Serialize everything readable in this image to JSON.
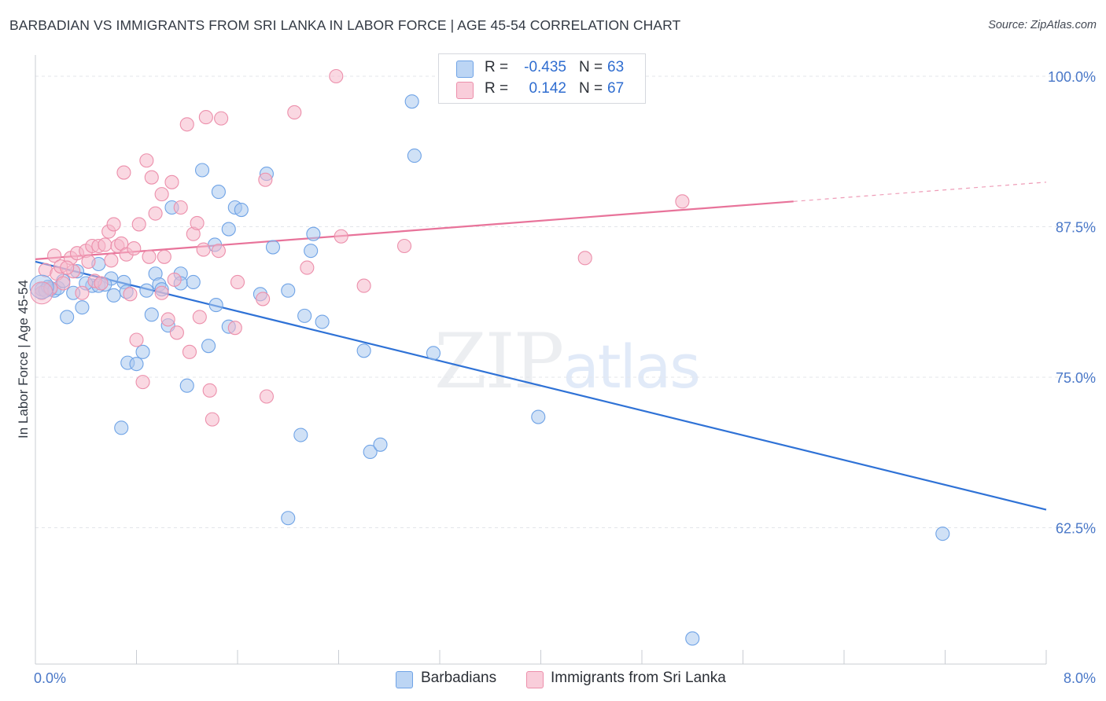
{
  "title": "BARBADIAN VS IMMIGRANTS FROM SRI LANKA IN LABOR FORCE | AGE 45-54 CORRELATION CHART",
  "source": "Source: ZipAtlas.com",
  "watermark": {
    "zip": "ZIP",
    "atlas": "atlas"
  },
  "legend": {
    "rows": [
      {
        "r_label": "R =",
        "r_value": "-0.435",
        "n_label": "N =",
        "n_value": "63",
        "color": "#a9c8ef"
      },
      {
        "r_label": "R =",
        "r_value": "0.142",
        "n_label": "N =",
        "n_value": "67",
        "color": "#f5b8cb"
      }
    ]
  },
  "bottom_legend": [
    {
      "label": "Barbadians",
      "color": "#a9c8ef"
    },
    {
      "label": "Immigrants from Sri Lanka",
      "color": "#f5b8cb"
    }
  ],
  "chart_data": {
    "type": "scatter",
    "title": "BARBADIAN VS IMMIGRANTS FROM SRI LANKA IN LABOR FORCE | AGE 45-54 CORRELATION CHART",
    "xlabel": "",
    "ylabel": "In Labor Force | Age 45-54",
    "xlim": [
      0,
      8.0
    ],
    "ylim": [
      50.5,
      101.5
    ],
    "x_tick_labels": [
      "0.0%",
      "8.0%"
    ],
    "y_ticks": [
      62.5,
      75.0,
      87.5,
      100.0
    ],
    "y_tick_labels": [
      "62.5%",
      "75.0%",
      "87.5%",
      "100.0%"
    ],
    "grid": true,
    "series": [
      {
        "name": "Barbadians",
        "color": "#6fa3e6",
        "fill": "#a9c8ef",
        "trend": {
          "x": [
            0.0,
            8.0
          ],
          "y": [
            84.6,
            64.0
          ],
          "color": "#2f72d6"
        },
        "points": [
          [
            0.05,
            82.3
          ],
          [
            0.08,
            82.2
          ],
          [
            0.1,
            82.5
          ],
          [
            0.12,
            82.3
          ],
          [
            0.15,
            82.2
          ],
          [
            0.18,
            82.4
          ],
          [
            0.22,
            83.0
          ],
          [
            0.25,
            80.0
          ],
          [
            0.3,
            82.0
          ],
          [
            0.33,
            83.8
          ],
          [
            0.37,
            80.8
          ],
          [
            0.45,
            82.6
          ],
          [
            0.5,
            84.4
          ],
          [
            0.5,
            82.6
          ],
          [
            0.6,
            83.2
          ],
          [
            0.62,
            81.8
          ],
          [
            0.68,
            70.8
          ],
          [
            0.7,
            82.9
          ],
          [
            0.72,
            82.1
          ],
          [
            0.73,
            76.2
          ],
          [
            0.8,
            76.1
          ],
          [
            0.85,
            77.1
          ],
          [
            0.88,
            82.2
          ],
          [
            0.92,
            80.2
          ],
          [
            0.95,
            83.6
          ],
          [
            0.98,
            82.7
          ],
          [
            1.05,
            79.3
          ],
          [
            1.08,
            89.1
          ],
          [
            1.15,
            83.6
          ],
          [
            1.15,
            82.8
          ],
          [
            1.2,
            74.3
          ],
          [
            1.25,
            82.9
          ],
          [
            1.32,
            92.2
          ],
          [
            1.37,
            77.6
          ],
          [
            1.42,
            86.0
          ],
          [
            1.43,
            81.0
          ],
          [
            1.45,
            90.4
          ],
          [
            1.53,
            79.2
          ],
          [
            1.53,
            87.3
          ],
          [
            1.58,
            89.1
          ],
          [
            1.63,
            88.9
          ],
          [
            1.83,
            91.9
          ],
          [
            1.88,
            85.8
          ],
          [
            2.0,
            82.2
          ],
          [
            2.1,
            70.2
          ],
          [
            2.13,
            80.1
          ],
          [
            2.18,
            85.5
          ],
          [
            2.2,
            86.9
          ],
          [
            2.27,
            79.6
          ],
          [
            2.6,
            77.2
          ],
          [
            2.65,
            68.8
          ],
          [
            2.73,
            69.4
          ],
          [
            2.98,
            97.9
          ],
          [
            3.0,
            93.4
          ],
          [
            3.15,
            77.0
          ],
          [
            3.98,
            71.7
          ],
          [
            2.0,
            63.3
          ],
          [
            7.18,
            62.0
          ],
          [
            5.2,
            53.3
          ],
          [
            0.55,
            82.7
          ],
          [
            1.0,
            82.3
          ],
          [
            0.4,
            82.8
          ],
          [
            1.78,
            81.9
          ]
        ]
      },
      {
        "name": "Immigrants from Sri Lanka",
        "color": "#ec8fab",
        "fill": "#f5b8cb",
        "trend": {
          "x": [
            0.0,
            6.0
          ],
          "y": [
            84.8,
            89.6
          ],
          "dashed_to": [
            8.0,
            91.2
          ],
          "color": "#e8739a"
        },
        "points": [
          [
            0.05,
            82.0
          ],
          [
            0.08,
            83.9
          ],
          [
            0.12,
            82.4
          ],
          [
            0.15,
            85.1
          ],
          [
            0.17,
            83.6
          ],
          [
            0.2,
            84.2
          ],
          [
            0.22,
            82.8
          ],
          [
            0.28,
            84.9
          ],
          [
            0.3,
            83.8
          ],
          [
            0.33,
            85.3
          ],
          [
            0.37,
            82.0
          ],
          [
            0.4,
            85.5
          ],
          [
            0.42,
            84.6
          ],
          [
            0.45,
            85.9
          ],
          [
            0.47,
            83.0
          ],
          [
            0.5,
            85.9
          ],
          [
            0.52,
            82.8
          ],
          [
            0.55,
            86.0
          ],
          [
            0.58,
            87.1
          ],
          [
            0.62,
            87.7
          ],
          [
            0.65,
            85.9
          ],
          [
            0.68,
            86.1
          ],
          [
            0.7,
            92.0
          ],
          [
            0.72,
            85.2
          ],
          [
            0.75,
            81.9
          ],
          [
            0.78,
            85.7
          ],
          [
            0.8,
            78.1
          ],
          [
            0.82,
            87.7
          ],
          [
            0.85,
            74.6
          ],
          [
            0.88,
            93.0
          ],
          [
            0.9,
            85.0
          ],
          [
            0.92,
            91.6
          ],
          [
            0.95,
            88.6
          ],
          [
            1.0,
            90.2
          ],
          [
            1.02,
            85.0
          ],
          [
            1.05,
            79.8
          ],
          [
            1.08,
            91.2
          ],
          [
            1.1,
            83.1
          ],
          [
            1.12,
            78.7
          ],
          [
            1.15,
            89.1
          ],
          [
            1.2,
            96.0
          ],
          [
            1.22,
            77.1
          ],
          [
            1.25,
            86.9
          ],
          [
            1.28,
            87.8
          ],
          [
            1.3,
            80.0
          ],
          [
            1.33,
            85.6
          ],
          [
            1.35,
            96.6
          ],
          [
            1.38,
            73.9
          ],
          [
            1.4,
            71.5
          ],
          [
            1.45,
            85.5
          ],
          [
            1.47,
            96.5
          ],
          [
            1.58,
            79.1
          ],
          [
            1.6,
            82.9
          ],
          [
            1.82,
            91.4
          ],
          [
            1.83,
            73.4
          ],
          [
            2.05,
            97.0
          ],
          [
            2.15,
            84.1
          ],
          [
            2.38,
            100.0
          ],
          [
            2.42,
            86.7
          ],
          [
            2.6,
            82.6
          ],
          [
            2.92,
            85.9
          ],
          [
            4.35,
            84.9
          ],
          [
            5.12,
            89.6
          ],
          [
            0.25,
            84.1
          ],
          [
            1.8,
            81.5
          ],
          [
            0.6,
            84.7
          ],
          [
            1.0,
            82.0
          ]
        ]
      }
    ]
  }
}
